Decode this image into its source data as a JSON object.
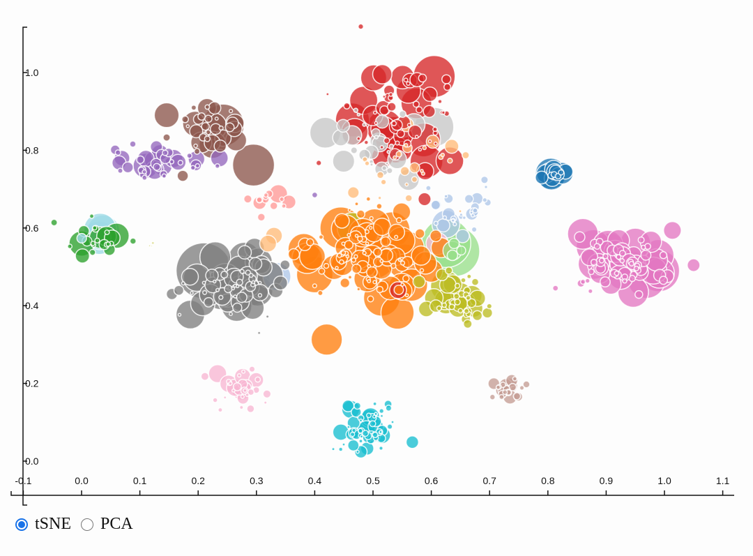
{
  "controls": {
    "options": [
      {
        "label": "tSNE",
        "selected": true
      },
      {
        "label": "PCA",
        "selected": false
      }
    ]
  },
  "chart_data": {
    "type": "scatter",
    "title": "",
    "xlabel": "",
    "ylabel": "",
    "xlim": [
      -0.1,
      1.1
    ],
    "ylim": [
      -0.05,
      1.12
    ],
    "grid": false,
    "legend": "none",
    "x_ticks": [
      "-0.1",
      "0.0",
      "0.1",
      "0.2",
      "0.3",
      "0.4",
      "0.5",
      "0.6",
      "0.7",
      "0.8",
      "0.9",
      "1.0",
      "1.1"
    ],
    "y_ticks": [
      "0.0",
      "0.2",
      "0.4",
      "0.6",
      "0.8",
      "1.0"
    ],
    "marker": "bubble (variable radius, white stroke, ~0.75 opacity)",
    "clusters": [
      {
        "name": "red",
        "color": "#d62728",
        "cx": 0.56,
        "cy": 0.88,
        "sx": 0.05,
        "sy": 0.08,
        "n": 70,
        "rmin": 2,
        "rmax": 26
      },
      {
        "name": "light-orange",
        "color": "#ffbb78",
        "cx": 0.56,
        "cy": 0.76,
        "sx": 0.04,
        "sy": 0.06,
        "n": 26,
        "rmin": 2,
        "rmax": 10
      },
      {
        "name": "light-gray",
        "color": "#c7c7c7",
        "cx": 0.49,
        "cy": 0.82,
        "sx": 0.05,
        "sy": 0.05,
        "n": 28,
        "rmin": 2,
        "rmax": 16
      },
      {
        "name": "brown",
        "color": "#8c564b",
        "cx": 0.22,
        "cy": 0.86,
        "sx": 0.03,
        "sy": 0.03,
        "n": 34,
        "rmin": 2,
        "rmax": 20
      },
      {
        "name": "purple",
        "color": "#9467bd",
        "cx": 0.14,
        "cy": 0.76,
        "sx": 0.04,
        "sy": 0.02,
        "n": 40,
        "rmin": 3,
        "rmax": 14
      },
      {
        "name": "salmon",
        "color": "#ff9896",
        "cx": 0.32,
        "cy": 0.67,
        "sx": 0.015,
        "sy": 0.015,
        "n": 14,
        "rmin": 3,
        "rmax": 14
      },
      {
        "name": "orange",
        "color": "#ff7f0e",
        "cx": 0.49,
        "cy": 0.53,
        "sx": 0.05,
        "sy": 0.06,
        "n": 110,
        "rmin": 2,
        "rmax": 26
      },
      {
        "name": "light-blue",
        "color": "#aec7e8",
        "cx": 0.65,
        "cy": 0.64,
        "sx": 0.03,
        "sy": 0.03,
        "n": 30,
        "rmin": 2,
        "rmax": 10
      },
      {
        "name": "light-green",
        "color": "#98df8a",
        "cx": 0.64,
        "cy": 0.54,
        "sx": 0.01,
        "sy": 0.01,
        "n": 5,
        "rmin": 6,
        "rmax": 36
      },
      {
        "name": "olive",
        "color": "#bcbd22",
        "cx": 0.65,
        "cy": 0.42,
        "sx": 0.025,
        "sy": 0.04,
        "n": 45,
        "rmin": 3,
        "rmax": 16
      },
      {
        "name": "steel-blue",
        "color": "#1f77b4",
        "cx": 0.81,
        "cy": 0.74,
        "sx": 0.01,
        "sy": 0.01,
        "n": 14,
        "rmin": 3,
        "rmax": 20
      },
      {
        "name": "pink",
        "color": "#e377c2",
        "cx": 0.93,
        "cy": 0.51,
        "sx": 0.04,
        "sy": 0.04,
        "n": 80,
        "rmin": 3,
        "rmax": 28
      },
      {
        "name": "green",
        "color": "#2ca02c",
        "cx": 0.03,
        "cy": 0.57,
        "sx": 0.02,
        "sy": 0.02,
        "n": 22,
        "rmin": 3,
        "rmax": 20
      },
      {
        "name": "light-cyan",
        "color": "#9edae5",
        "cx": 0.03,
        "cy": 0.58,
        "sx": 0.01,
        "sy": 0.01,
        "n": 4,
        "rmin": 6,
        "rmax": 24
      },
      {
        "name": "gray",
        "color": "#7f7f7f",
        "cx": 0.25,
        "cy": 0.45,
        "sx": 0.04,
        "sy": 0.04,
        "n": 70,
        "rmin": 2,
        "rmax": 26
      },
      {
        "name": "light-pink",
        "color": "#f7b6d2",
        "cx": 0.27,
        "cy": 0.19,
        "sx": 0.02,
        "sy": 0.025,
        "n": 34,
        "rmin": 2,
        "rmax": 14
      },
      {
        "name": "cyan",
        "color": "#17becf",
        "cx": 0.49,
        "cy": 0.08,
        "sx": 0.025,
        "sy": 0.03,
        "n": 60,
        "rmin": 2,
        "rmax": 14
      },
      {
        "name": "rosy-brown",
        "color": "#c49c94",
        "cx": 0.73,
        "cy": 0.19,
        "sx": 0.015,
        "sy": 0.012,
        "n": 22,
        "rmin": 3,
        "rmax": 11
      },
      {
        "name": "yellow-olive",
        "color": "#dbdb8d",
        "cx": 0.12,
        "cy": 0.555,
        "sx": 0.004,
        "sy": 0.004,
        "n": 4,
        "rmin": 1,
        "rmax": 6
      }
    ],
    "highlight_points": [
      {
        "color": "#d62728",
        "x": 0.605,
        "y": 0.99,
        "r": 30
      },
      {
        "color": "#d62728",
        "x": 0.535,
        "y": 0.84,
        "r": 26
      },
      {
        "color": "#c7c7c7",
        "x": 0.605,
        "y": 0.86,
        "r": 28
      },
      {
        "color": "#c7c7c7",
        "x": 0.418,
        "y": 0.845,
        "r": 22
      },
      {
        "color": "#c7c7c7",
        "x": 0.365,
        "y": 0.845,
        "r": 0
      },
      {
        "color": "#8c564b",
        "x": 0.243,
        "y": 0.865,
        "r": 30
      },
      {
        "color": "#8c564b",
        "x": 0.295,
        "y": 0.762,
        "r": 30
      },
      {
        "color": "#8c564b",
        "x": 0.195,
        "y": 0.868,
        "r": 18
      },
      {
        "color": "#9467bd",
        "x": 0.11,
        "y": 0.76,
        "r": 18
      },
      {
        "color": "#ff7f0e",
        "x": 0.445,
        "y": 0.6,
        "r": 30
      },
      {
        "color": "#ff7f0e",
        "x": 0.4,
        "y": 0.48,
        "r": 26
      },
      {
        "color": "#ff7f0e",
        "x": 0.515,
        "y": 0.42,
        "r": 26
      },
      {
        "color": "#ff7f0e",
        "x": 0.5,
        "y": 0.53,
        "r": 34
      },
      {
        "color": "#ff7f0e",
        "x": 0.59,
        "y": 0.51,
        "r": 16
      },
      {
        "color": "#bcbd22",
        "x": 0.465,
        "y": 0.6,
        "r": 22
      },
      {
        "color": "#bcbd22",
        "x": 0.625,
        "y": 0.45,
        "r": 22
      },
      {
        "color": "#98df8a",
        "x": 0.64,
        "y": 0.54,
        "r": 36
      },
      {
        "color": "#aec7e8",
        "x": 0.625,
        "y": 0.61,
        "r": 20
      },
      {
        "color": "#aec7e8",
        "x": 0.335,
        "y": 0.475,
        "r": 20
      },
      {
        "color": "#f7b6d2",
        "x": 0.61,
        "y": 0.56,
        "r": 16
      },
      {
        "color": "#e377c2",
        "x": 0.86,
        "y": 0.585,
        "r": 22
      },
      {
        "color": "#e377c2",
        "x": 0.99,
        "y": 0.49,
        "r": 30
      },
      {
        "color": "#e377c2",
        "x": 0.95,
        "y": 0.56,
        "r": 22
      },
      {
        "color": "#1f77b4",
        "x": 0.805,
        "y": 0.74,
        "r": 22
      },
      {
        "color": "#7f7f7f",
        "x": 0.21,
        "y": 0.49,
        "r": 40
      },
      {
        "color": "#7f7f7f",
        "x": 0.28,
        "y": 0.46,
        "r": 36
      },
      {
        "color": "#2ca02c",
        "x": 0.06,
        "y": 0.58,
        "r": 18
      },
      {
        "color": "#2ca02c",
        "x": 0.0,
        "y": 0.56,
        "r": 18
      },
      {
        "color": "#9edae5",
        "x": 0.03,
        "y": 0.575,
        "r": 24
      },
      {
        "color": "#ffbb78",
        "x": 0.33,
        "y": 0.58,
        "r": 12
      },
      {
        "color": "#ffbb78",
        "x": 0.32,
        "y": 0.56,
        "r": 12
      },
      {
        "color": "#ffbb78",
        "x": 0.635,
        "y": 0.81,
        "r": 10
      },
      {
        "color": "#7f7f7f",
        "x": 0.155,
        "y": 0.43,
        "r": 8
      },
      {
        "color": "#7f7f7f",
        "x": 0.349,
        "y": 0.505,
        "r": 7
      },
      {
        "color": "#d62728",
        "x": 0.543,
        "y": 0.44,
        "r": 12
      },
      {
        "color": "#e377c2",
        "x": 0.813,
        "y": 0.445,
        "r": 4
      },
      {
        "color": "#9467bd",
        "x": 0.4,
        "y": 0.685,
        "r": 4
      },
      {
        "color": "#17becf",
        "x": 0.49,
        "y": 0.08,
        "r": 14
      },
      {
        "color": "#c49c94",
        "x": 0.735,
        "y": 0.165,
        "r": 10
      }
    ]
  }
}
